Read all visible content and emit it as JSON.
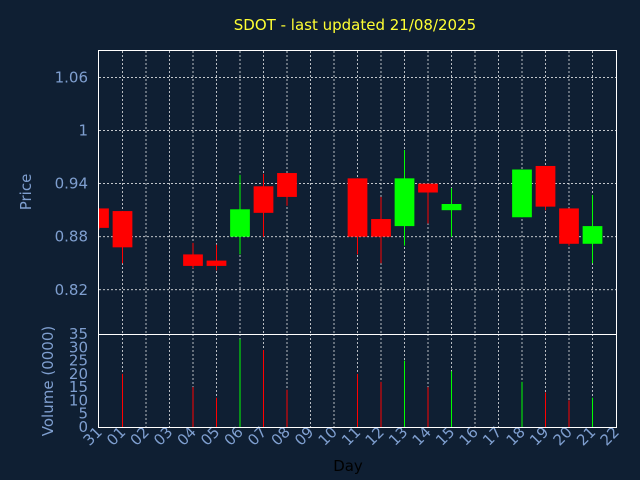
{
  "chart_data": {
    "type": "candlestick",
    "title": "SDOT - last updated 21/08/2025",
    "ylabel": "Price",
    "volume_ylabel": "Volume (0000)",
    "xlabel": "Day",
    "price_ylim": [
      0.77,
      1.09
    ],
    "price_yticks": [
      "1.06",
      "1",
      "0.94",
      "0.88",
      "0.82"
    ],
    "price_ytick_values": [
      1.06,
      1.0,
      0.94,
      0.88,
      0.82
    ],
    "volume_ylim": [
      0,
      35
    ],
    "volume_yticks": [
      "35",
      "30",
      "25",
      "20",
      "15",
      "10",
      "5",
      "0"
    ],
    "volume_ytick_values": [
      35,
      30,
      25,
      20,
      15,
      10,
      5,
      0
    ],
    "x_labels": [
      "31",
      "01",
      "02",
      "03",
      "04",
      "05",
      "06",
      "07",
      "08",
      "09",
      "10",
      "11",
      "12",
      "13",
      "14",
      "15",
      "16",
      "17",
      "18",
      "19",
      "20",
      "21",
      "22"
    ],
    "grid": true,
    "colors": {
      "up": "#00ff00",
      "down": "#ff0000",
      "background": "#0f1f33",
      "title": "#ffff33",
      "axis_text": "#7f9fd0"
    },
    "candles": [
      {
        "day": "31",
        "open": 0.912,
        "high": 0.912,
        "low": 0.888,
        "close": 0.89
      },
      {
        "day": "01",
        "open": 0.909,
        "high": 0.909,
        "low": 0.85,
        "close": 0.868
      },
      {
        "day": "04",
        "open": 0.86,
        "high": 0.873,
        "low": 0.844,
        "close": 0.847
      },
      {
        "day": "05",
        "open": 0.853,
        "high": 0.871,
        "low": 0.842,
        "close": 0.847
      },
      {
        "day": "06",
        "open": 0.88,
        "high": 0.95,
        "low": 0.86,
        "close": 0.911
      },
      {
        "day": "07",
        "open": 0.937,
        "high": 0.951,
        "low": 0.88,
        "close": 0.907
      },
      {
        "day": "08",
        "open": 0.952,
        "high": 0.952,
        "low": 0.915,
        "close": 0.925
      },
      {
        "day": "11",
        "open": 0.946,
        "high": 0.946,
        "low": 0.86,
        "close": 0.88
      },
      {
        "day": "12",
        "open": 0.9,
        "high": 0.925,
        "low": 0.85,
        "close": 0.88
      },
      {
        "day": "13",
        "open": 0.892,
        "high": 0.978,
        "low": 0.87,
        "close": 0.946
      },
      {
        "day": "14",
        "open": 0.94,
        "high": 0.94,
        "low": 0.895,
        "close": 0.93
      },
      {
        "day": "15",
        "open": 0.91,
        "high": 0.935,
        "low": 0.88,
        "close": 0.917
      },
      {
        "day": "18",
        "open": 0.902,
        "high": 0.956,
        "low": 0.902,
        "close": 0.956
      },
      {
        "day": "19",
        "open": 0.96,
        "high": 0.96,
        "low": 0.91,
        "close": 0.914
      },
      {
        "day": "20",
        "open": 0.912,
        "high": 0.912,
        "low": 0.87,
        "close": 0.872
      },
      {
        "day": "21",
        "open": 0.872,
        "high": 0.927,
        "low": 0.85,
        "close": 0.892
      }
    ],
    "volume": [
      {
        "day": "01",
        "value": 20,
        "dir": "down"
      },
      {
        "day": "04",
        "value": 15,
        "dir": "down"
      },
      {
        "day": "05",
        "value": 11,
        "dir": "down"
      },
      {
        "day": "06",
        "value": 33,
        "dir": "up"
      },
      {
        "day": "07",
        "value": 29,
        "dir": "down"
      },
      {
        "day": "08",
        "value": 14,
        "dir": "down"
      },
      {
        "day": "11",
        "value": 20,
        "dir": "down"
      },
      {
        "day": "12",
        "value": 17,
        "dir": "down"
      },
      {
        "day": "13",
        "value": 25,
        "dir": "up"
      },
      {
        "day": "14",
        "value": 15,
        "dir": "down"
      },
      {
        "day": "15",
        "value": 21,
        "dir": "up"
      },
      {
        "day": "18",
        "value": 17,
        "dir": "up"
      },
      {
        "day": "19",
        "value": 13,
        "dir": "down"
      },
      {
        "day": "20",
        "value": 10,
        "dir": "down"
      },
      {
        "day": "21",
        "value": 11,
        "dir": "up"
      }
    ]
  }
}
